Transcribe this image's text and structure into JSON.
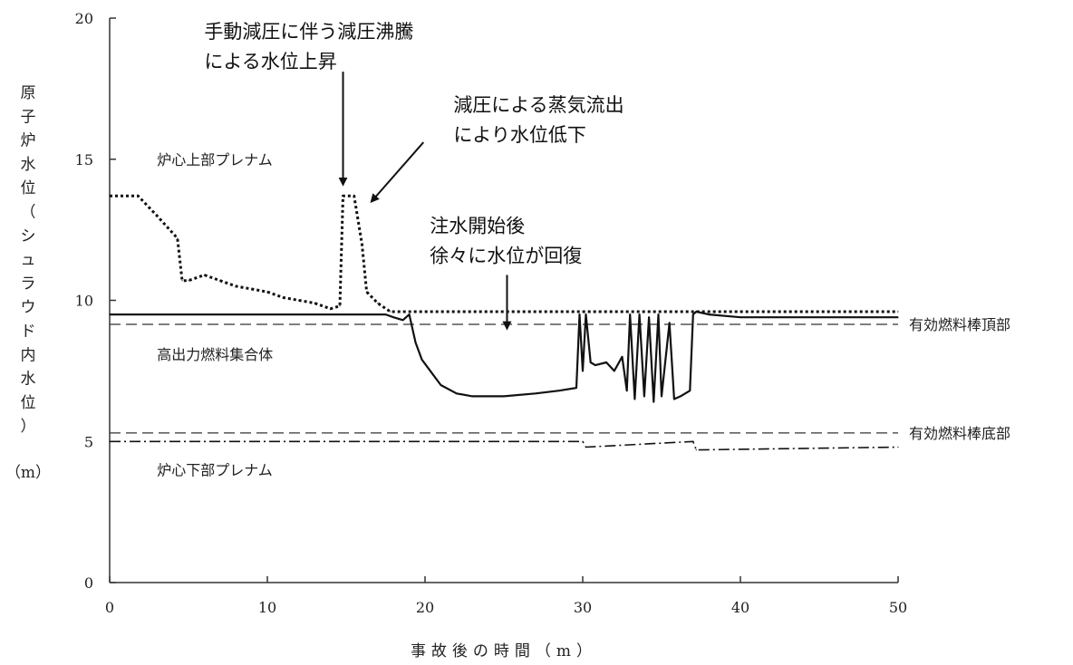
{
  "chart_data": {
    "type": "line",
    "title": "",
    "xlabel": "事故後の時間（m）",
    "ylabel_chars": [
      "原",
      "子",
      "炉",
      "水",
      "位",
      "（",
      "シ",
      "ュ",
      "ラ",
      "ウ",
      "ド",
      "内",
      "水",
      "位",
      "）"
    ],
    "ylabel_unit": "（m）",
    "xlim": [
      0,
      50
    ],
    "ylim": [
      0,
      20
    ],
    "x_ticks": [
      0,
      10,
      20,
      30,
      40,
      50
    ],
    "y_ticks": [
      0,
      5,
      10,
      15,
      20
    ],
    "grid": false,
    "series": [
      {
        "style": "dotted",
        "x": [
          0,
          1.8,
          3,
          4.3,
          4.6,
          5.0,
          6.0,
          7.0,
          8.0,
          9.0,
          10.0,
          11.0,
          12.0,
          13.0,
          14.0,
          14.6,
          14.8,
          15.5,
          16.0,
          16.3,
          17.0,
          17.8,
          19.0,
          30.0,
          40.0,
          50.0
        ],
        "y": [
          13.7,
          13.7,
          13.0,
          12.2,
          10.7,
          10.7,
          10.9,
          10.7,
          10.5,
          10.4,
          10.3,
          10.1,
          10.0,
          9.9,
          9.7,
          9.8,
          13.7,
          13.7,
          12.0,
          10.3,
          9.9,
          9.6,
          9.6,
          9.6,
          9.6,
          9.6
        ]
      },
      {
        "style": "solid",
        "x": [
          0,
          17.5,
          18.0,
          18.6,
          19.0,
          19.4,
          19.8,
          20.2,
          21.0,
          22.0,
          23.0,
          25.0,
          27.0,
          28.5,
          29.6,
          29.8,
          30.0,
          30.2,
          30.5,
          30.8,
          31.5,
          32.0,
          32.5,
          32.8,
          33.0,
          33.3,
          33.6,
          33.9,
          34.2,
          34.5,
          34.8,
          35.0,
          35.5,
          35.8,
          36.2,
          36.8,
          37.0,
          37.2,
          38.0,
          40.0,
          45.0,
          50.0
        ],
        "y": [
          9.5,
          9.5,
          9.4,
          9.3,
          9.5,
          8.5,
          7.9,
          7.6,
          7.0,
          6.7,
          6.6,
          6.6,
          6.7,
          6.8,
          6.9,
          9.5,
          7.5,
          9.5,
          7.8,
          7.7,
          7.8,
          7.5,
          8.0,
          6.8,
          9.5,
          6.5,
          9.5,
          6.6,
          9.4,
          6.4,
          9.5,
          6.6,
          9.2,
          6.5,
          6.6,
          6.8,
          9.5,
          9.6,
          9.5,
          9.4,
          9.4,
          9.4
        ]
      },
      {
        "style": "dashdot",
        "x": [
          0,
          30,
          30.2,
          37,
          37.2,
          50
        ],
        "y": [
          5.0,
          5.0,
          4.8,
          5.0,
          4.7,
          4.8
        ]
      }
    ],
    "reference_lines": [
      {
        "style": "dashed",
        "y": 9.15,
        "label": "有効燃料棒頂部"
      },
      {
        "style": "dashed",
        "y": 5.3,
        "label": "有効燃料棒底部"
      }
    ],
    "region_labels": [
      {
        "text": "炉心上部プレナム",
        "x": 3.0,
        "y": 14.8
      },
      {
        "text": "高出力燃料集合体",
        "x": 3.0,
        "y": 7.9
      },
      {
        "text": "炉心下部プレナム",
        "x": 3.0,
        "y": 3.8
      }
    ],
    "annotations": [
      {
        "lines": [
          "手動減圧に伴う減圧沸騰",
          "による水位上昇"
        ],
        "x": 6.0,
        "y": 19.3,
        "arrow_from": [
          14.8,
          18.1
        ],
        "arrow_to": [
          14.8,
          14.1
        ]
      },
      {
        "lines": [
          "減圧による蒸気流出",
          "により水位低下"
        ],
        "x": 21.8,
        "y": 16.7,
        "arrow_from": [
          19.9,
          15.6
        ],
        "arrow_to": [
          16.6,
          13.5
        ]
      },
      {
        "lines": [
          "注水開始後",
          "徐々に水位が回復"
        ],
        "x": 20.3,
        "y": 12.4,
        "arrow_from": [
          25.2,
          10.9
        ],
        "arrow_to": [
          25.2,
          9.0
        ]
      }
    ]
  }
}
